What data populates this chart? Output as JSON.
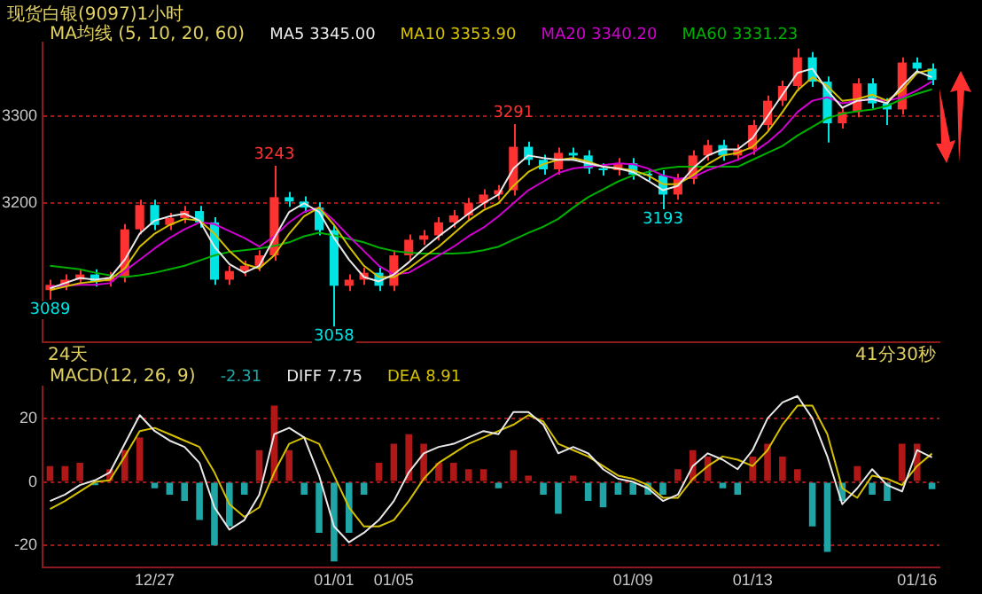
{
  "chart_data": [
    {
      "type": "candlestick",
      "title": "现货白银(9097)1小时",
      "legend_title": "MA均线 (5, 10, 20, 60)",
      "legend": "top left",
      "grid": "y",
      "tick_labels": "y",
      "marker": "none",
      "categories": [
        null,
        null,
        null,
        null,
        null,
        null,
        null,
        null,
        null,
        null,
        null,
        null,
        null,
        null,
        null,
        null,
        null,
        null,
        null,
        null,
        null,
        null,
        null,
        null,
        null,
        null,
        null,
        null,
        null,
        null,
        null,
        null,
        null,
        null,
        null,
        null,
        null,
        null,
        null,
        null,
        null,
        null,
        null,
        null,
        null,
        null,
        null,
        null,
        null,
        null,
        null,
        null,
        null,
        null,
        null,
        null,
        null,
        null,
        null,
        null
      ],
      "ylim": [
        3040,
        3385
      ],
      "yticks": [
        3200,
        3300
      ],
      "ohlc": [
        [
          3100,
          3112,
          3089,
          3106
        ],
        [
          3106,
          3118,
          3100,
          3112
        ],
        [
          3112,
          3124,
          3106,
          3118
        ],
        [
          3118,
          3124,
          3104,
          3110
        ],
        [
          3110,
          3121,
          3104,
          3115
        ],
        [
          3115,
          3176,
          3109,
          3170
        ],
        [
          3170,
          3204,
          3164,
          3198
        ],
        [
          3198,
          3204,
          3169,
          3175
        ],
        [
          3175,
          3189,
          3169,
          3183
        ],
        [
          3183,
          3197,
          3177,
          3191
        ],
        [
          3191,
          3197,
          3172,
          3178
        ],
        [
          3178,
          3184,
          3106,
          3112
        ],
        [
          3112,
          3128,
          3106,
          3122
        ],
        [
          3122,
          3134,
          3116,
          3128
        ],
        [
          3128,
          3146,
          3122,
          3140
        ],
        [
          3140,
          3243,
          3134,
          3207
        ],
        [
          3207,
          3213,
          3196,
          3202
        ],
        [
          3202,
          3208,
          3189,
          3195
        ],
        [
          3195,
          3201,
          3163,
          3169
        ],
        [
          3169,
          3175,
          3058,
          3105
        ],
        [
          3105,
          3118,
          3099,
          3112
        ],
        [
          3112,
          3126,
          3106,
          3120
        ],
        [
          3120,
          3126,
          3099,
          3105
        ],
        [
          3105,
          3146,
          3099,
          3140
        ],
        [
          3140,
          3164,
          3134,
          3158
        ],
        [
          3158,
          3169,
          3152,
          3163
        ],
        [
          3163,
          3184,
          3157,
          3178
        ],
        [
          3178,
          3192,
          3172,
          3186
        ],
        [
          3186,
          3206,
          3180,
          3200
        ],
        [
          3200,
          3216,
          3194,
          3210
        ],
        [
          3210,
          3221,
          3204,
          3215
        ],
        [
          3215,
          3291,
          3209,
          3265
        ],
        [
          3265,
          3271,
          3244,
          3250
        ],
        [
          3250,
          3256,
          3233,
          3239
        ],
        [
          3239,
          3264,
          3233,
          3258
        ],
        [
          3258,
          3264,
          3249,
          3255
        ],
        [
          3255,
          3261,
          3234,
          3240
        ],
        [
          3240,
          3246,
          3232,
          3238
        ],
        [
          3238,
          3252,
          3232,
          3246
        ],
        [
          3246,
          3252,
          3227,
          3233
        ],
        [
          3233,
          3239,
          3226,
          3232
        ],
        [
          3232,
          3238,
          3193,
          3210
        ],
        [
          3210,
          3234,
          3204,
          3228
        ],
        [
          3228,
          3261,
          3222,
          3255
        ],
        [
          3255,
          3273,
          3249,
          3267
        ],
        [
          3267,
          3273,
          3249,
          3255
        ],
        [
          3255,
          3268,
          3249,
          3262
        ],
        [
          3262,
          3296,
          3256,
          3290
        ],
        [
          3290,
          3324,
          3284,
          3318
        ],
        [
          3318,
          3341,
          3312,
          3335
        ],
        [
          3335,
          3378,
          3329,
          3368
        ],
        [
          3368,
          3374,
          3334,
          3340
        ],
        [
          3340,
          3346,
          3270,
          3292
        ],
        [
          3292,
          3311,
          3286,
          3305
        ],
        [
          3305,
          3344,
          3299,
          3338
        ],
        [
          3338,
          3344,
          3309,
          3315
        ],
        [
          3315,
          3321,
          3290,
          3308
        ],
        [
          3308,
          3368,
          3302,
          3362
        ],
        [
          3362,
          3368,
          3349,
          3355
        ],
        [
          3355,
          3361,
          3336,
          3342
        ]
      ],
      "colors": [
        "#ff3232",
        "#ff3232",
        "#ff3232",
        "#00e4e4",
        "#ff3232",
        "#ff3232",
        "#ff3232",
        "#00e4e4",
        "#ff3232",
        "#ff3232",
        "#00e4e4",
        "#00e4e4",
        "#ff3232",
        "#ff3232",
        "#ff3232",
        "#ff3232",
        "#00e4e4",
        "#00e4e4",
        "#00e4e4",
        "#00e4e4",
        "#ff3232",
        "#ff3232",
        "#00e4e4",
        "#ff3232",
        "#ff3232",
        "#ff3232",
        "#ff3232",
        "#ff3232",
        "#ff3232",
        "#ff3232",
        "#ff3232",
        "#ff3232",
        "#00e4e4",
        "#00e4e4",
        "#ff3232",
        "#00e4e4",
        "#00e4e4",
        "#00e4e4",
        "#ff3232",
        "#00e4e4",
        "#00e4e4",
        "#00e4e4",
        "#ff3232",
        "#ff3232",
        "#ff3232",
        "#00e4e4",
        "#ff3232",
        "#ff3232",
        "#ff3232",
        "#ff3232",
        "#ff3232",
        "#00e4e4",
        "#00e4e4",
        "#ff3232",
        "#ff3232",
        "#00e4e4",
        "#00e4e4",
        "#ff3232",
        "#00e4e4",
        "#00e4e4"
      ],
      "series": [
        {
          "type": "line",
          "name": "MA5 3345.00",
          "color": "#e8e8e8",
          "values": [
            3102,
            3108,
            3114,
            3112,
            3114,
            3135,
            3165,
            3180,
            3185,
            3188,
            3180,
            3150,
            3130,
            3120,
            3128,
            3160,
            3190,
            3200,
            3190,
            3160,
            3135,
            3115,
            3110,
            3118,
            3132,
            3148,
            3162,
            3175,
            3188,
            3200,
            3210,
            3240,
            3255,
            3252,
            3250,
            3250,
            3246,
            3242,
            3240,
            3236,
            3226,
            3215,
            3220,
            3240,
            3255,
            3262,
            3262,
            3275,
            3300,
            3325,
            3350,
            3355,
            3330,
            3310,
            3318,
            3320,
            3315,
            3335,
            3352,
            3345
          ]
        },
        {
          "type": "line",
          "name": "MA10 3353.90",
          "color": "#d4c000",
          "values": [
            3100,
            3104,
            3108,
            3110,
            3112,
            3125,
            3150,
            3165,
            3175,
            3182,
            3180,
            3165,
            3145,
            3130,
            3125,
            3140,
            3165,
            3185,
            3195,
            3175,
            3150,
            3128,
            3115,
            3115,
            3125,
            3138,
            3150,
            3165,
            3180,
            3192,
            3200,
            3220,
            3236,
            3245,
            3250,
            3252,
            3248,
            3242,
            3240,
            3238,
            3232,
            3222,
            3222,
            3232,
            3245,
            3255,
            3258,
            3265,
            3282,
            3305,
            3330,
            3345,
            3335,
            3318,
            3320,
            3325,
            3318,
            3330,
            3350,
            3353.9
          ]
        },
        {
          "type": "line",
          "name": "MA20 3340.20",
          "color": "#d000d0",
          "values": [
            3104,
            3105,
            3106,
            3106,
            3108,
            3122,
            3135,
            3148,
            3160,
            3170,
            3178,
            3176,
            3168,
            3160,
            3150,
            3162,
            3178,
            3190,
            3195,
            3180,
            3162,
            3145,
            3128,
            3118,
            3120,
            3130,
            3140,
            3150,
            3162,
            3172,
            3185,
            3200,
            3215,
            3225,
            3235,
            3240,
            3242,
            3244,
            3246,
            3245,
            3240,
            3232,
            3228,
            3230,
            3238,
            3244,
            3250,
            3258,
            3270,
            3285,
            3305,
            3318,
            3322,
            3315,
            3318,
            3320,
            3318,
            3322,
            3330,
            3340.2
          ]
        },
        {
          "type": "line",
          "name": "MA60 3331.23",
          "color": "#00b000",
          "values": [
            3128,
            3126,
            3124,
            3120,
            3117,
            3115,
            3117,
            3120,
            3124,
            3128,
            3134,
            3140,
            3144,
            3146,
            3148,
            3151,
            3155,
            3162,
            3166,
            3163,
            3159,
            3155,
            3149,
            3145,
            3143,
            3142,
            3142,
            3142,
            3143,
            3146,
            3150,
            3158,
            3166,
            3173,
            3182,
            3195,
            3207,
            3216,
            3225,
            3232,
            3236,
            3240,
            3242,
            3242,
            3242,
            3242,
            3242,
            3250,
            3258,
            3266,
            3278,
            3288,
            3298,
            3303,
            3306,
            3308,
            3312,
            3320,
            3326,
            3331.23
          ]
        }
      ],
      "annotations": [
        {
          "text": "3089",
          "y": 3089
        },
        {
          "text": "3243",
          "y": 3243
        },
        {
          "text": "3058",
          "y": 3058
        },
        {
          "text": "3291",
          "y": 3291
        },
        {
          "text": "3193",
          "y": 3193
        },
        "24天",
        "41分30秒"
      ]
    },
    {
      "type": "bar",
      "legend_title": "MACD(12, 26, 9)",
      "legend": "top left",
      "grid": "y",
      "marker": "none",
      "categories": [
        null,
        null,
        null,
        null,
        null,
        null,
        null,
        "12/27",
        null,
        null,
        null,
        null,
        null,
        null,
        null,
        null,
        null,
        null,
        null,
        "01/01",
        null,
        null,
        null,
        "01/05",
        null,
        null,
        null,
        null,
        null,
        null,
        null,
        null,
        null,
        null,
        null,
        null,
        null,
        null,
        null,
        "01/09",
        null,
        null,
        null,
        null,
        null,
        null,
        null,
        "01/13",
        null,
        null,
        null,
        null,
        null,
        null,
        null,
        null,
        null,
        null,
        "01/16",
        null
      ],
      "ylim": [
        -27,
        30
      ],
      "yticks": [
        -20,
        0,
        20
      ],
      "series": [
        {
          "name": "-2.31",
          "colors": [
            "#b01818",
            "#b01818",
            "#b01818",
            "#1fa5a5",
            "#b01818",
            "#b01818",
            "#b01818",
            "#1fa5a5",
            "#1fa5a5",
            "#1fa5a5",
            "#1fa5a5",
            "#1fa5a5",
            "#1fa5a5",
            "#1fa5a5",
            "#b01818",
            "#b01818",
            "#b01818",
            "#1fa5a5",
            "#1fa5a5",
            "#1fa5a5",
            "#1fa5a5",
            "#1fa5a5",
            "#b01818",
            "#b01818",
            "#b01818",
            "#b01818",
            "#b01818",
            "#b01818",
            "#b01818",
            "#b01818",
            "#1fa5a5",
            "#b01818",
            "#b01818",
            "#1fa5a5",
            "#1fa5a5",
            "#b01818",
            "#1fa5a5",
            "#1fa5a5",
            "#1fa5a5",
            "#1fa5a5",
            "#1fa5a5",
            "#1fa5a5",
            "#b01818",
            "#b01818",
            "#b01818",
            "#1fa5a5",
            "#1fa5a5",
            "#b01818",
            "#b01818",
            "#b01818",
            "#b01818",
            "#1fa5a5",
            "#1fa5a5",
            "#1fa5a5",
            "#b01818",
            "#1fa5a5",
            "#1fa5a5",
            "#b01818",
            "#b01818",
            "#1fa5a5"
          ],
          "values": [
            5,
            5,
            6,
            -1,
            4,
            10,
            14,
            -2,
            -4,
            -6,
            -12,
            -20,
            -14,
            -4,
            10,
            24,
            10,
            -4,
            -16,
            -25,
            -16,
            -4,
            6,
            12,
            15,
            12,
            6,
            6,
            4,
            4,
            -2,
            10,
            2,
            -4,
            -10,
            2,
            -6,
            -8,
            -4,
            -4,
            -4,
            -4,
            4,
            10,
            8,
            -2,
            -4,
            8,
            12,
            8,
            4,
            -14,
            -22,
            -6,
            5,
            -4,
            -6,
            12,
            12,
            -2.31
          ]
        },
        {
          "type": "line",
          "name": "DIFF 7.75",
          "color": "#e8e8e8",
          "values": [
            -6,
            -4,
            -1,
            0.5,
            3,
            12,
            21,
            16,
            13,
            11,
            6,
            -8,
            -15,
            -12,
            -4,
            15,
            17,
            14,
            2,
            -14,
            -19,
            -16,
            -12,
            -6,
            3,
            9,
            11,
            12,
            14,
            16,
            15,
            22,
            22,
            18,
            9,
            11,
            9,
            4,
            1,
            0,
            -2,
            -6,
            -4,
            5,
            9,
            7,
            4,
            10,
            20,
            25,
            27,
            20,
            8,
            -7,
            -2,
            4,
            -1,
            -3,
            10,
            7.75
          ]
        },
        {
          "type": "line",
          "name": "DEA 8.91",
          "color": "#d4c000",
          "values": [
            -8.5,
            -6,
            -3,
            0,
            0.5,
            8,
            16,
            17,
            15,
            13,
            11,
            3,
            -7,
            -11,
            -8,
            3,
            12,
            14,
            12,
            2,
            -8,
            -14,
            -14,
            -12,
            -6,
            1,
            6,
            9,
            12,
            14,
            16,
            18,
            21,
            19,
            12,
            10,
            8,
            5,
            2,
            1,
            -1,
            -5,
            -5,
            1,
            5,
            8,
            7,
            5,
            10,
            18,
            24,
            24,
            15,
            -2,
            -5,
            2,
            1,
            -1,
            5,
            8.91
          ]
        }
      ]
    }
  ]
}
